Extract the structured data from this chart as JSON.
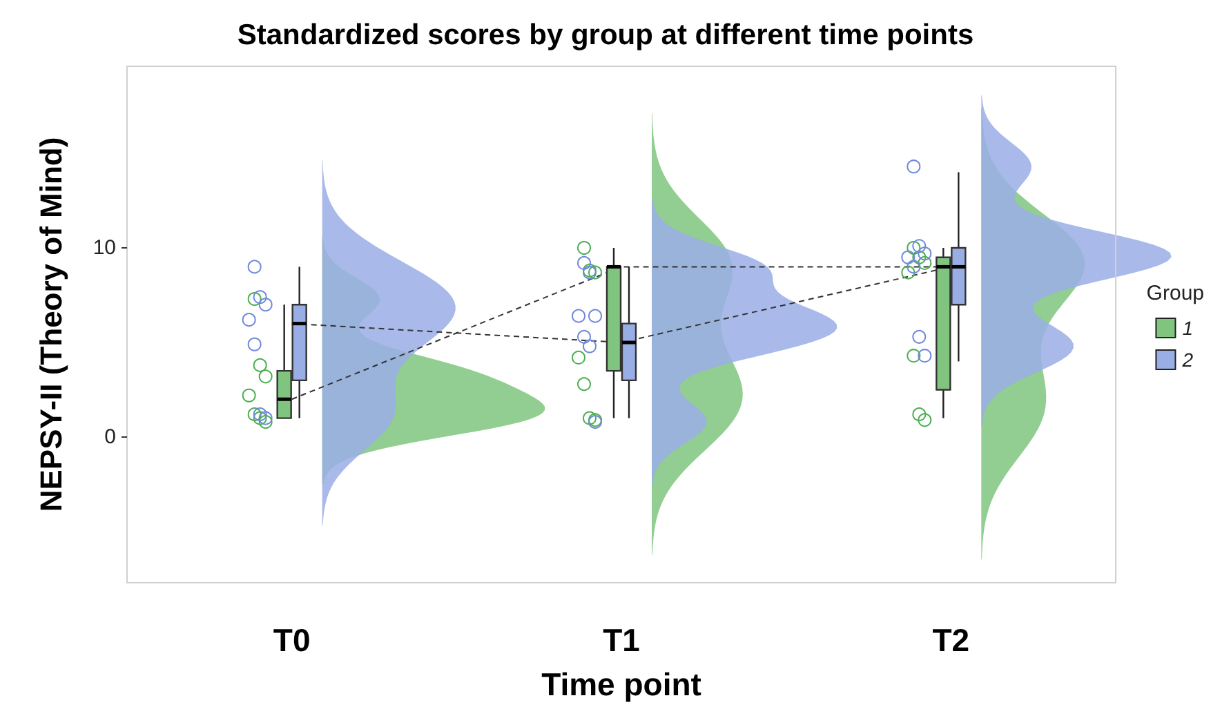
{
  "chart_data": {
    "type": "box",
    "title": "Standardized scores by group at different time points",
    "xlabel": "Time point",
    "ylabel": "NEPSY-II (Theory of Mind)",
    "legend_title": "Group",
    "legend": "right",
    "grid": false,
    "categories": [
      "T0",
      "T1",
      "T2"
    ],
    "ylim": [
      -7.7,
      19.6
    ],
    "yticks": [
      0,
      10
    ],
    "series": [
      {
        "name": "1",
        "color": "#7fc57f",
        "boxes": [
          {
            "low": 1,
            "q1": 1,
            "median": 2,
            "q3": 3.5,
            "high": 7
          },
          {
            "low": 1,
            "q1": 3.5,
            "median": 9,
            "q3": 9,
            "high": 10
          },
          {
            "low": 1,
            "q1": 2.5,
            "median": 9,
            "q3": 9.5,
            "high": 10
          }
        ]
      },
      {
        "name": "2",
        "color": "#9aaee6",
        "boxes": [
          {
            "low": 1,
            "q1": 3,
            "median": 6,
            "q3": 7,
            "high": 9
          },
          {
            "low": 1,
            "q1": 3,
            "median": 5,
            "q3": 6,
            "high": 9
          },
          {
            "low": 4,
            "q1": 7,
            "median": 9,
            "q3": 10,
            "high": 14
          }
        ]
      },
      {
        "type": "scatter",
        "marker": "circle",
        "color": "#4caf50",
        "x": [
          "T0",
          "T0",
          "T0",
          "T0",
          "T0",
          "T0",
          "T0",
          "T1",
          "T1",
          "T1",
          "T1",
          "T1",
          "T1",
          "T1",
          "T2",
          "T2",
          "T2",
          "T2",
          "T2",
          "T2",
          "T2"
        ],
        "values": [
          7.3,
          3.8,
          3.2,
          2.2,
          1.2,
          1,
          0.8,
          10,
          8.8,
          8.7,
          4.2,
          2.8,
          1,
          0.9,
          10,
          9.5,
          9.2,
          8.7,
          4.3,
          1.2,
          0.9
        ]
      },
      {
        "type": "scatter",
        "marker": "circle",
        "color": "#6f88dc",
        "x": [
          "T0",
          "T0",
          "T0",
          "T0",
          "T0",
          "T0",
          "T0",
          "T1",
          "T1",
          "T1",
          "T1",
          "T1",
          "T1",
          "T1",
          "T2",
          "T2",
          "T2",
          "T2",
          "T2",
          "T2",
          "T2"
        ],
        "values": [
          9,
          7.4,
          7,
          6.2,
          4.9,
          1.2,
          1,
          9.2,
          8.7,
          6.4,
          6.4,
          5.3,
          4.8,
          0.8,
          14.3,
          10.1,
          9.7,
          9.5,
          9,
          5.3,
          4.3
        ]
      },
      {
        "type": "line",
        "line_style": "dashed",
        "color": "#333333",
        "values": [
          2,
          9,
          9
        ]
      },
      {
        "type": "line",
        "line_style": "dashed",
        "color": "#333333",
        "values": [
          6,
          5,
          9
        ]
      }
    ]
  }
}
